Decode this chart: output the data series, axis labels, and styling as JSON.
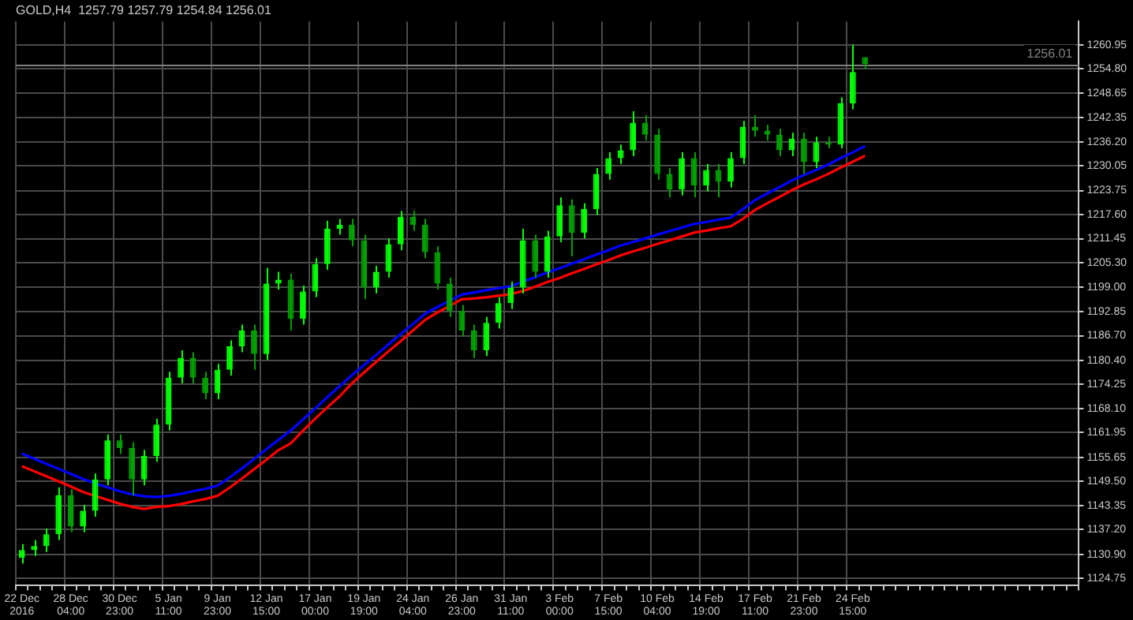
{
  "chart_data": {
    "type": "candlestick",
    "title": "GOLD,H4  1257.79 1257.79 1254.84 1256.01",
    "categories": [
      "22 Dec 2016",
      null,
      null,
      null,
      "28 Dec 04:00",
      null,
      null,
      null,
      "30 Dec 23:00",
      null,
      null,
      null,
      "5 Jan 11:00",
      null,
      null,
      null,
      "9 Jan 23:00",
      null,
      null,
      null,
      "12 Jan 15:00",
      null,
      null,
      null,
      "17 Jan 00:00",
      null,
      null,
      null,
      "19 Jan 19:00",
      null,
      null,
      null,
      "24 Jan 04:00",
      null,
      null,
      null,
      "26 Jan 23:00",
      null,
      null,
      null,
      "31 Jan 11:00",
      null,
      null,
      null,
      "3 Feb 00:00",
      null,
      null,
      null,
      "7 Feb 15:00",
      null,
      null,
      null,
      "10 Feb 04:00",
      null,
      null,
      null,
      "14 Feb 19:00",
      null,
      null,
      null,
      "17 Feb 11:00",
      null,
      null,
      null,
      "21 Feb 23:00",
      null,
      null,
      null,
      "24 Feb 15:00",
      null,
      null,
      null,
      null,
      null,
      null,
      null,
      null,
      null,
      null,
      null,
      null,
      null,
      null,
      null,
      null,
      null,
      null
    ],
    "series": [
      {
        "type": "line",
        "color": "#0000ff",
        "values": [
          1156.6,
          1155.3,
          1154,
          1152.7,
          1151.4,
          1150.1,
          1149,
          1148,
          1147,
          1146.2,
          1145.7,
          1145.5,
          1145.8,
          1146.3,
          1147,
          1147.6,
          1148.4,
          1150.5,
          1152.8,
          1155.2,
          1157.7,
          1160.1,
          1162.5,
          1165.3,
          1168.1,
          1171,
          1173.8,
          1176.6,
          1179.2,
          1181.8,
          1184.5,
          1187.1,
          1189.7,
          1192.3,
          1194,
          1195.6,
          1197.2,
          1197.7,
          1198.3,
          1198.8,
          1199.3,
          1200.5,
          1201.6,
          1202.8,
          1203.9,
          1205.1,
          1206.2,
          1207.4,
          1208.5,
          1209.7,
          1210.6,
          1211.5,
          1212.5,
          1213.4,
          1214.3,
          1215.2,
          1215.7,
          1216.3,
          1216.8,
          1219,
          1221.3,
          1223,
          1224.6,
          1226.3,
          1227.7,
          1229,
          1230.4,
          1232,
          1233.5,
          1235.1,
          null,
          null,
          null,
          null,
          null,
          null,
          null,
          null,
          null,
          null,
          null,
          null,
          null,
          null,
          null,
          null,
          null
        ]
      },
      {
        "type": "line",
        "color": "#ff0000",
        "values": [
          1153.4,
          1152.1,
          1150.8,
          1149.5,
          1148.2,
          1146.8,
          1145.8,
          1144.8,
          1143.8,
          1143,
          1142.5,
          1143,
          1143.2,
          1143.7,
          1144.4,
          1145,
          1145.8,
          1147.9,
          1150.2,
          1152.6,
          1155,
          1157.5,
          1159.2,
          1162.4,
          1165.5,
          1168.4,
          1171.2,
          1174.5,
          1177.3,
          1180,
          1182.7,
          1185.3,
          1188,
          1190.7,
          1192.6,
          1194.3,
          1196,
          1196.2,
          1196.5,
          1196.9,
          1197.3,
          1198.1,
          1199.2,
          1200.4,
          1201.4,
          1202.6,
          1203.7,
          1204.9,
          1206,
          1207.2,
          1208.2,
          1209.1,
          1210.1,
          1211,
          1212,
          1213,
          1213.5,
          1214.1,
          1214.6,
          1216.5,
          1218.8,
          1220.5,
          1222.1,
          1223.8,
          1225.3,
          1226.6,
          1228,
          1229.6,
          1231.1,
          1232.6,
          null,
          null,
          null,
          null,
          null,
          null,
          null,
          null,
          null,
          null,
          null,
          null,
          null,
          null,
          null,
          null,
          null
        ]
      },
      {
        "colors": [
          "#00ff00",
          "#00ff00",
          "#00ff00",
          "#00ff00",
          "#00a000",
          "#00ff00",
          "#00ff00",
          "#00ff00",
          "#00a000",
          "#00a000",
          "#00ff00",
          "#00ff00",
          "#00ff00",
          "#00ff00",
          "#00a000",
          "#00a000",
          "#00ff00",
          "#00ff00",
          "#00ff00",
          "#00a000",
          "#00ff00",
          "#00ff00",
          "#00a000",
          "#00ff00",
          "#00ff00",
          "#00ff00",
          "#00ff00",
          "#00a000",
          "#00a000",
          "#00ff00",
          "#00ff00",
          "#00ff00",
          "#00a000",
          "#00a000",
          "#00a000",
          "#00a000",
          "#00a000",
          "#00a000",
          "#00ff00",
          "#00ff00",
          "#00ff00",
          "#00ff00",
          "#00a000",
          "#00ff00",
          "#00ff00",
          "#00a000",
          "#00ff00",
          "#00ff00",
          "#00ff00",
          "#00ff00",
          "#00ff00",
          "#00a000",
          "#00a000",
          "#00a000",
          "#00ff00",
          "#00a000",
          "#00ff00",
          "#00a000",
          "#00ff00",
          "#00ff00",
          "#00a000",
          "#00a000",
          "#00a000",
          "#00ff00",
          "#00a000",
          "#00ff00",
          "#00a000",
          "#00ff00",
          "#00ff00",
          "#00a000",
          null,
          null,
          null,
          null,
          null,
          null,
          null,
          null,
          null,
          null,
          null,
          null,
          null,
          null,
          null,
          null,
          null
        ],
        "ohlc": [
          [
            1130,
            1133.5,
            1128.5,
            1132
          ],
          [
            1132,
            1134.5,
            1130.5,
            1133
          ],
          [
            1133,
            1137.5,
            1131.5,
            1136
          ],
          [
            1136,
            1148,
            1134.5,
            1146
          ],
          [
            1146,
            1147.5,
            1136.5,
            1138
          ],
          [
            1138,
            1143.5,
            1136.5,
            1142
          ],
          [
            1142,
            1151.5,
            1140.5,
            1150
          ],
          [
            1150,
            1161.5,
            1148.5,
            1160
          ],
          [
            1160,
            1161.5,
            1156.5,
            1158
          ],
          [
            1158,
            1159.5,
            1146,
            1150
          ],
          [
            1150,
            1157.5,
            1148.5,
            1156
          ],
          [
            1156,
            1165.5,
            1154.5,
            1164
          ],
          [
            1164,
            1177.5,
            1162.5,
            1176
          ],
          [
            1176,
            1183,
            1174.5,
            1181
          ],
          [
            1181,
            1182.5,
            1174.5,
            1176
          ],
          [
            1176,
            1177.5,
            1170.5,
            1172
          ],
          [
            1172,
            1179.5,
            1170.5,
            1178
          ],
          [
            1178,
            1185.5,
            1176.5,
            1184
          ],
          [
            1184,
            1189.5,
            1182.5,
            1188
          ],
          [
            1188,
            1189.5,
            1178,
            1182
          ],
          [
            1182,
            1204,
            1180.5,
            1200
          ],
          [
            1200,
            1203,
            1198.5,
            1201
          ],
          [
            1201,
            1202.5,
            1188,
            1191
          ],
          [
            1191,
            1199.5,
            1189.5,
            1198
          ],
          [
            1198,
            1206.5,
            1196.5,
            1205
          ],
          [
            1205,
            1216,
            1203.5,
            1214
          ],
          [
            1214,
            1216.5,
            1212.5,
            1215
          ],
          [
            1215,
            1216.5,
            1209.5,
            1211
          ],
          [
            1211,
            1212.5,
            1196,
            1199
          ],
          [
            1199,
            1204.5,
            1197.5,
            1203
          ],
          [
            1203,
            1211.5,
            1201.5,
            1210
          ],
          [
            1210,
            1218.5,
            1208.5,
            1217
          ],
          [
            1217,
            1218.5,
            1213.5,
            1215
          ],
          [
            1215,
            1216.5,
            1206.5,
            1208
          ],
          [
            1208,
            1209.5,
            1198.5,
            1200
          ],
          [
            1200,
            1201.5,
            1191.5,
            1193
          ],
          [
            1193,
            1194.5,
            1186.5,
            1188
          ],
          [
            1188,
            1189.5,
            1181,
            1183
          ],
          [
            1183,
            1191.5,
            1181.5,
            1190
          ],
          [
            1190,
            1196.5,
            1188.5,
            1195
          ],
          [
            1195,
            1200.5,
            1193.5,
            1199
          ],
          [
            1199,
            1214,
            1197.5,
            1211
          ],
          [
            1211,
            1212.5,
            1201.5,
            1203
          ],
          [
            1203,
            1213.5,
            1201.5,
            1212
          ],
          [
            1212,
            1222,
            1210.5,
            1220
          ],
          [
            1220,
            1221.5,
            1207,
            1213
          ],
          [
            1213,
            1220.5,
            1211.5,
            1219
          ],
          [
            1219,
            1229.5,
            1217.5,
            1228
          ],
          [
            1228,
            1233.5,
            1226.5,
            1232
          ],
          [
            1232,
            1235.5,
            1230.5,
            1234
          ],
          [
            1234,
            1244,
            1232.5,
            1241
          ],
          [
            1241,
            1243,
            1236.5,
            1238
          ],
          [
            1238,
            1239.5,
            1226.5,
            1228
          ],
          [
            1228,
            1229.5,
            1222,
            1224
          ],
          [
            1224,
            1233.5,
            1222.5,
            1232
          ],
          [
            1232,
            1233.5,
            1222,
            1225
          ],
          [
            1225,
            1230.5,
            1223.5,
            1229
          ],
          [
            1229,
            1230.5,
            1222,
            1226
          ],
          [
            1226,
            1233.5,
            1224.5,
            1232
          ],
          [
            1232,
            1241.5,
            1230.5,
            1240
          ],
          [
            1240,
            1243,
            1237.5,
            1239
          ],
          [
            1239,
            1240.5,
            1236.5,
            1238
          ],
          [
            1238,
            1239.5,
            1232.5,
            1234
          ],
          [
            1234,
            1238.5,
            1232.5,
            1237
          ],
          [
            1237,
            1238.5,
            1228,
            1231
          ],
          [
            1231,
            1237.5,
            1229.5,
            1236
          ],
          [
            1236,
            1237.5,
            1234.5,
            1235.5
          ],
          [
            1235.5,
            1247.5,
            1234.5,
            1246
          ],
          [
            1246,
            1261,
            1244.5,
            1254
          ],
          [
            1257.79,
            1257.79,
            1254.84,
            1256.01
          ],
          null,
          null,
          null,
          null,
          null,
          null,
          null,
          null,
          null,
          null,
          null,
          null,
          null,
          null,
          null,
          null,
          null
        ]
      }
    ],
    "ylim": [
      1122.9,
      1266.9
    ],
    "yticks": [
      1124.75,
      {
        "value": 1130.9,
        "label": "1130.90"
      },
      {
        "value": 1137.2,
        "label": "1137.20"
      },
      1143.35,
      {
        "value": 1149.5,
        "label": "1149.50"
      },
      1155.65,
      1161.95,
      {
        "value": 1168.1,
        "label": "1168.10"
      },
      1174.25,
      {
        "value": 1180.4,
        "label": "1180.40"
      },
      {
        "value": 1186.7,
        "label": "1186.70"
      },
      1192.85,
      {
        "value": 1199,
        "label": "1199.00"
      },
      {
        "value": 1205.3,
        "label": "1205.30"
      },
      1211.45,
      {
        "value": 1217.6,
        "label": "1217.60"
      },
      1223.75,
      1230.05,
      {
        "value": 1236.2,
        "label": "1236.20"
      },
      1242.35,
      1248.65,
      {
        "value": 1254.8,
        "label": "1254.80"
      },
      1260.95
    ],
    "ref_lines": [
      {
        "axis": "y",
        "value": 1256.01,
        "label": "1256.01",
        "color": "#808080"
      }
    ],
    "grid": true,
    "legend": false,
    "marker": "none"
  }
}
